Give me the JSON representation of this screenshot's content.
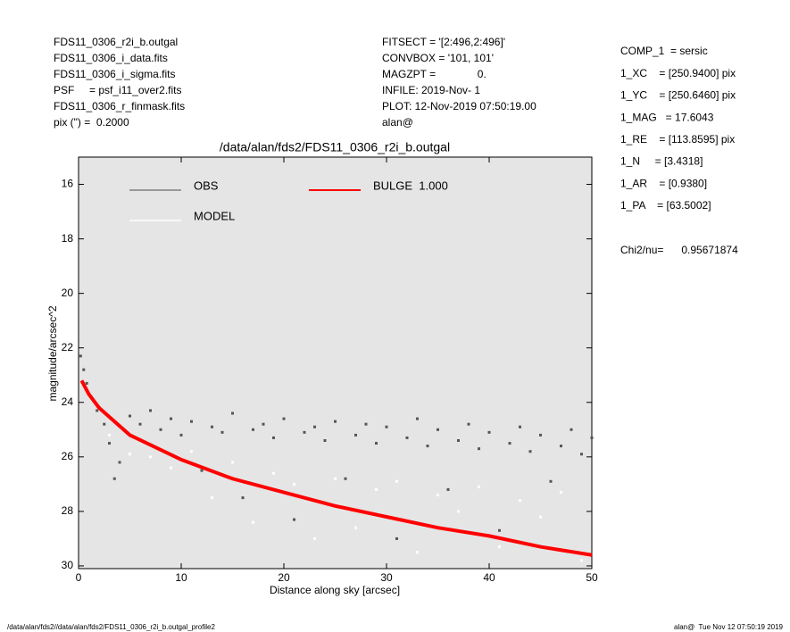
{
  "header": {
    "left": [
      "FDS11_0306_r2i_b.outgal",
      "FDS11_0306_i_data.fits",
      "FDS11_0306_i_sigma.fits",
      "PSF     = psf_i11_over2.fits",
      "FDS11_0306_r_finmask.fits",
      "pix (\") =  0.2000"
    ],
    "middle": [
      "FITSECT = '[2:496,2:496]'",
      "CONVBOX = '101, 101'",
      "MAGZPT =              0.",
      "INFILE: 2019-Nov- 1",
      "PLOT: 12-Nov-2019 07:50:19.00",
      "alan@"
    ],
    "right": [
      "COMP_1  = sersic",
      "1_XC    = [250.9400] pix",
      "1_YC    = [250.6460] pix",
      "1_MAG   = 17.6043",
      "1_RE    = [113.8595] pix",
      "1_N     = [3.4318]",
      "1_AR    = [0.9380]",
      "1_PA    = [63.5002]"
    ],
    "chi2": "Chi2/nu=      0.95671874"
  },
  "chart_data": {
    "type": "scatter",
    "title": "/data/alan/fds2/FDS11_0306_r2i_b.outgal",
    "x_label": "Distance along sky [arcsec]",
    "y_label": "magnitude/arcsec^2",
    "xlim": [
      0,
      50
    ],
    "xticks": [
      0,
      10,
      20,
      30,
      40,
      50
    ],
    "ylim": [
      15,
      30.1
    ],
    "y_inverted": true,
    "yticks": [
      16,
      18,
      20,
      22,
      24,
      26,
      28,
      30
    ],
    "series": [
      {
        "name": "OBS",
        "color": "#555555",
        "mode": "points",
        "x": [
          0.2,
          0.5,
          0.8,
          1.2,
          1.8,
          2.5,
          3,
          3.5,
          4,
          5,
          6,
          7,
          8,
          9,
          10,
          11,
          12,
          13,
          14,
          15,
          16,
          17,
          18,
          19,
          20,
          21,
          22,
          23,
          24,
          25,
          26,
          27,
          28,
          29,
          30,
          31,
          32,
          33,
          34,
          35,
          36,
          37,
          38,
          39,
          40,
          41,
          42,
          43,
          44,
          45,
          46,
          47,
          48,
          49,
          50
        ],
        "values": [
          22.3,
          22.8,
          23.3,
          23.8,
          24.3,
          24.8,
          25.5,
          26.8,
          26.2,
          24.5,
          24.8,
          24.3,
          25.0,
          24.6,
          25.2,
          24.7,
          26.5,
          24.9,
          25.1,
          24.4,
          27.5,
          25.0,
          24.8,
          25.3,
          24.6,
          28.3,
          25.1,
          24.9,
          25.4,
          24.7,
          26.8,
          25.2,
          24.8,
          25.5,
          24.9,
          29.0,
          25.3,
          24.6,
          25.6,
          25.0,
          27.2,
          25.4,
          24.8,
          25.7,
          25.1,
          28.7,
          25.5,
          24.9,
          25.8,
          25.2,
          26.9,
          25.6,
          25.0,
          25.9,
          25.3
        ]
      },
      {
        "name": "MODEL",
        "color": "#ffffff",
        "mode": "points",
        "x": [
          3,
          5,
          7,
          9,
          11,
          13,
          15,
          17,
          19,
          21,
          23,
          25,
          27,
          29,
          31,
          33,
          35,
          37,
          39,
          41,
          43,
          45,
          47,
          49
        ],
        "values": [
          25.2,
          25.9,
          26.0,
          26.4,
          25.8,
          27.5,
          26.2,
          28.4,
          26.6,
          27.0,
          29.0,
          26.8,
          28.6,
          27.2,
          26.9,
          29.5,
          27.4,
          28.0,
          27.1,
          29.3,
          27.6,
          28.2,
          27.3,
          29.8
        ]
      },
      {
        "name": "BULGE  1.000",
        "color": "#ff0000",
        "mode": "line",
        "x": [
          0.3,
          1,
          2,
          5,
          10,
          15,
          20,
          25,
          30,
          35,
          40,
          45,
          50
        ],
        "values": [
          23.2,
          23.7,
          24.2,
          25.2,
          26.1,
          26.8,
          27.3,
          27.8,
          28.2,
          28.6,
          28.9,
          29.3,
          29.6
        ]
      }
    ]
  },
  "footer": {
    "left": "/data/alan/fds2//data/alan/fds2/FDS11_0306_r2i_b.outgal_profile2",
    "right": "alan@  Tue Nov 12 07:50:19 2019"
  }
}
